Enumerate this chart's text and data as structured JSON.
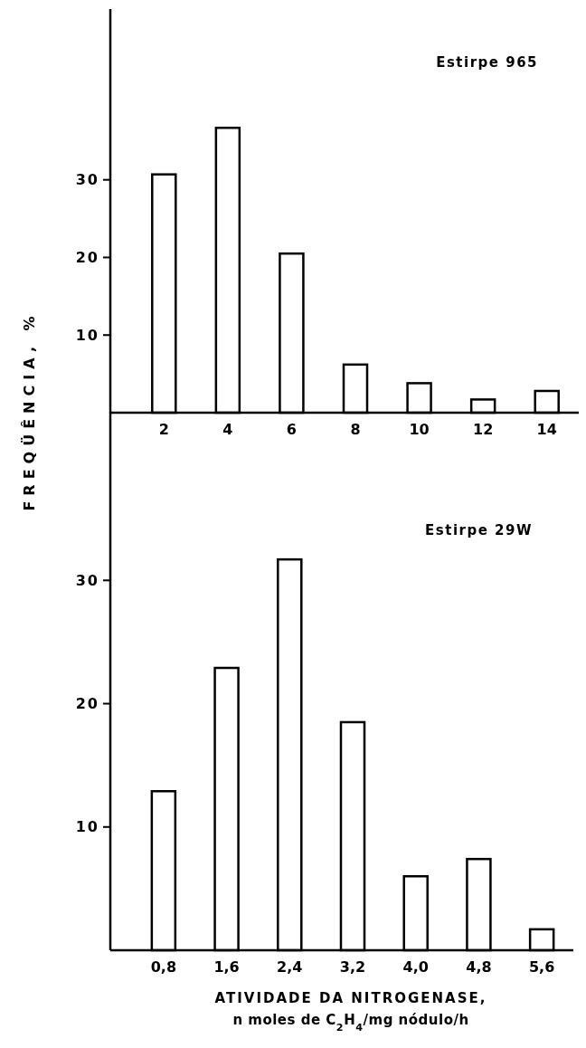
{
  "chart_data": [
    {
      "type": "bar",
      "title": "Estirpe 965",
      "ylabel": "FREQÜÊNCIA, %",
      "categories": [
        "2",
        "4",
        "6",
        "8",
        "10",
        "12",
        "14"
      ],
      "values": [
        30.7,
        36.7,
        20.5,
        6.2,
        3.8,
        1.7,
        2.8
      ],
      "color": "#ffffff",
      "ylim": [
        0,
        52
      ],
      "yticks": [
        10,
        20,
        30
      ]
    },
    {
      "type": "bar",
      "title": "Estirpe 29W",
      "xlabel": "ATIVIDADE DA NITROGENASE,\nn moles de C$_{2}$H$_{4}$/mg nódulo/h",
      "categories": [
        "0,8",
        "1,6",
        "2,4",
        "3,2",
        "4,0",
        "4,8",
        "5,6"
      ],
      "values": [
        12.9,
        22.9,
        31.7,
        18.5,
        6.0,
        7.4,
        1.7
      ],
      "color": "#ffffff",
      "ylim": [
        0,
        43.6
      ],
      "yticks": [
        10,
        20,
        30
      ]
    }
  ]
}
